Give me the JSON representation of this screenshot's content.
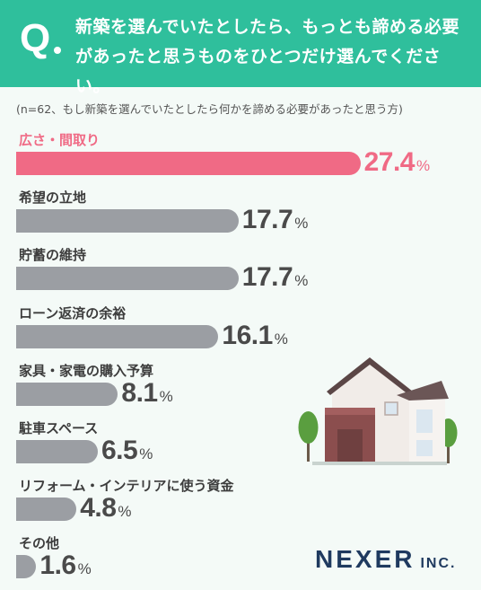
{
  "question": {
    "mark": "Q",
    "text": "新築を選んでいたとしたら、もっとも諦める必要があったと思うものをひとつだけ選んでください。"
  },
  "note": "(n=62、もし新築を選んでいたとしたら何かを諦める必要があったと思う方)",
  "brand": {
    "name": "NEXER",
    "suffix": "INC."
  },
  "colors": {
    "highlight": "#f06a85",
    "bar": "#9b9ea3",
    "header": "#2fbf9c",
    "brand": "#1f3a5f"
  },
  "chart_data": {
    "type": "bar",
    "orientation": "horizontal",
    "unit": "%",
    "categories": [
      "広さ・間取り",
      "希望の立地",
      "貯蓄の維持",
      "ローン返済の余裕",
      "家具・家電の購入予算",
      "駐車スペース",
      "リフォーム・インテリアに使う資金",
      "その他"
    ],
    "values": [
      27.4,
      17.7,
      17.7,
      16.1,
      8.1,
      6.5,
      4.8,
      1.6
    ],
    "value_labels": [
      "27.4",
      "17.7",
      "17.7",
      "16.1",
      "8.1",
      "6.5",
      "4.8",
      "1.6"
    ],
    "highlight_index": 0
  }
}
